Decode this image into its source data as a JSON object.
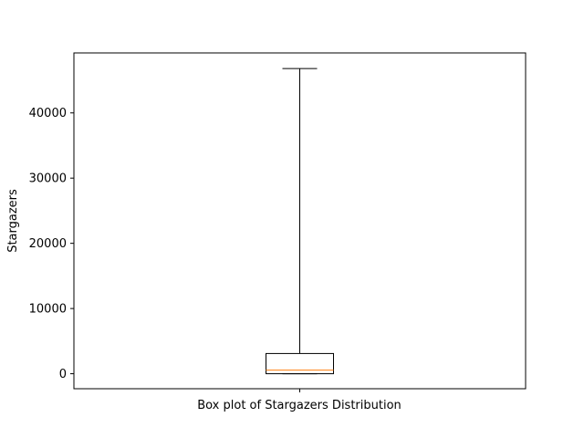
{
  "chart_data": {
    "type": "box",
    "title": "",
    "xlabel": "",
    "ylabel": "Stargazers",
    "category_label": "Box plot of Stargazers Distribution",
    "ylim": [
      -2300,
      49200
    ],
    "yticks": [
      0,
      10000,
      20000,
      30000,
      40000
    ],
    "ytick_labels": [
      "0",
      "10000",
      "20000",
      "30000",
      "40000"
    ],
    "box": {
      "whisker_low": 0,
      "q1": 0,
      "median": 550,
      "q3": 3100,
      "whisker_high": 46800
    },
    "grid": false,
    "colors": {
      "median": "#ff7f0e",
      "box": "#000000"
    }
  }
}
